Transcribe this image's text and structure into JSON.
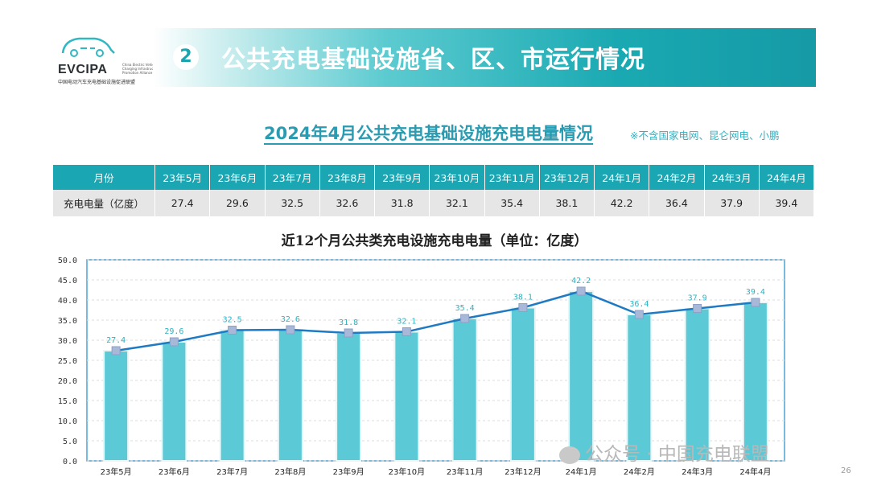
{
  "logo": {
    "brand": "EVCIPA",
    "sub": "China Electric Vehicle Charging Infrastructure Promotion Alliance",
    "cn": "中国电动汽车充电基础设施促进联盟"
  },
  "banner": {
    "number": "2",
    "title": "公共充电基础设施省、区、市运行情况"
  },
  "subtitle": "2024年4月公共充电基础设施充电电量情况",
  "note": "※不含国家电网、昆仑网电、小鹏",
  "table": {
    "header_label": "月份",
    "row_label": "充电电量（亿度）",
    "months": [
      "23年5月",
      "23年6月",
      "23年7月",
      "23年8月",
      "23年9月",
      "23年10月",
      "23年11月",
      "23年12月",
      "24年1月",
      "24年2月",
      "24年3月",
      "24年4月"
    ],
    "values": [
      "27.4",
      "29.6",
      "32.5",
      "32.6",
      "31.8",
      "32.1",
      "35.4",
      "38.1",
      "42.2",
      "36.4",
      "37.9",
      "39.4"
    ]
  },
  "chart_data": {
    "type": "bar",
    "title": "近12个月公共类充电设施充电电量（单位：亿度）",
    "categories": [
      "23年5月",
      "23年6月",
      "23年7月",
      "23年8月",
      "23年9月",
      "23年10月",
      "23年11月",
      "23年12月",
      "24年1月",
      "24年2月",
      "24年3月",
      "24年4月"
    ],
    "series": [
      {
        "type": "bar",
        "values": [
          27.4,
          29.6,
          32.5,
          32.6,
          31.8,
          32.1,
          35.4,
          38.1,
          42.2,
          36.4,
          37.9,
          39.4
        ]
      },
      {
        "type": "line",
        "values": [
          27.4,
          29.6,
          32.5,
          32.6,
          31.8,
          32.1,
          35.4,
          38.1,
          42.2,
          36.4,
          37.9,
          39.4
        ]
      }
    ],
    "ylim": [
      0,
      50
    ],
    "yticks": [
      "0.0",
      "5.0",
      "10.0",
      "15.0",
      "20.0",
      "25.0",
      "30.0",
      "35.0",
      "40.0",
      "45.0",
      "50.0"
    ],
    "grid": true,
    "colors": {
      "bar": "#5ccad6",
      "line": "#1f7ac4",
      "marker": "#a8b8d8",
      "label": "#2bb3c4"
    }
  },
  "watermark": "公众号 · 中国充电联盟",
  "page_number": "26"
}
